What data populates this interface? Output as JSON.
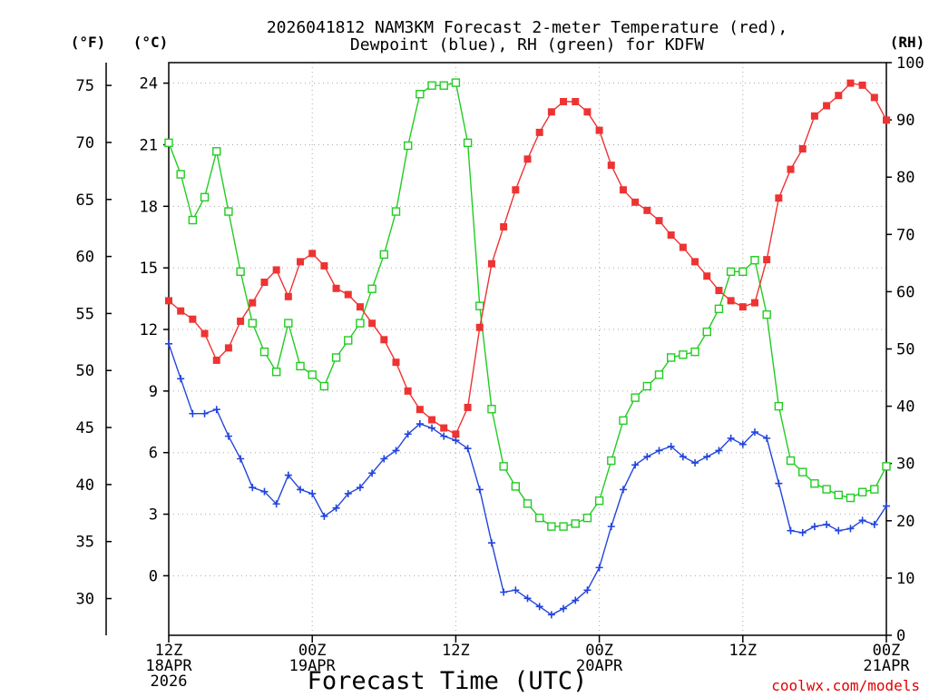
{
  "chart_data": {
    "type": "line",
    "title_lines": [
      "2026041812 NAM3KM Forecast 2-meter Temperature (red),",
      "Dewpoint (blue), RH (green) for KDFW"
    ],
    "xlabel": "Forecast Time (UTC)",
    "credit": "coolwx.com/models",
    "unit_labels": {
      "fahrenheit": "(°F)",
      "celsius": "(°C)",
      "rh": "(RH)"
    },
    "x_hours": [
      0,
      1,
      2,
      3,
      4,
      5,
      6,
      7,
      8,
      9,
      10,
      11,
      12,
      13,
      14,
      15,
      16,
      17,
      18,
      19,
      20,
      21,
      22,
      23,
      24,
      25,
      26,
      27,
      28,
      29,
      30,
      31,
      32,
      33,
      34,
      35,
      36,
      37,
      38,
      39,
      40,
      41,
      42,
      43,
      44,
      45,
      46,
      47,
      48,
      49,
      50,
      51,
      52,
      53,
      54,
      55,
      56,
      57,
      58,
      59,
      60
    ],
    "xlim": [
      0,
      60
    ],
    "x_ticks": [
      {
        "hour": 0,
        "lines": [
          "12Z",
          "18APR",
          "2026"
        ]
      },
      {
        "hour": 12,
        "lines": [
          "00Z",
          "19APR"
        ]
      },
      {
        "hour": 24,
        "lines": [
          "12Z"
        ]
      },
      {
        "hour": 36,
        "lines": [
          "00Z",
          "20APR"
        ]
      },
      {
        "hour": 48,
        "lines": [
          "12Z"
        ]
      },
      {
        "hour": 60,
        "lines": [
          "00Z",
          "21APR"
        ]
      }
    ],
    "ylim_celsius": [
      -2.9,
      25.0
    ],
    "y_ticks_celsius": [
      0,
      3,
      6,
      9,
      12,
      15,
      18,
      21,
      24
    ],
    "y_ticks_fahrenheit": [
      30,
      35,
      40,
      45,
      50,
      55,
      60,
      65,
      70,
      75
    ],
    "ylim_rh": [
      0,
      100
    ],
    "y_ticks_rh": [
      0,
      10,
      20,
      30,
      40,
      50,
      60,
      70,
      80,
      90,
      100
    ],
    "colors": {
      "temperature": "#ee3333",
      "dewpoint": "#2244dd",
      "rh": "#22cc22",
      "grid": "#aaaaaa",
      "axis": "#000000",
      "credit": "#e00000"
    },
    "series": [
      {
        "name": "Temperature",
        "unit": "C",
        "axis": "left",
        "marker": "filled-square",
        "values": [
          13.4,
          12.9,
          12.5,
          11.8,
          10.5,
          11.1,
          12.4,
          13.3,
          14.3,
          14.9,
          13.6,
          15.3,
          15.7,
          15.1,
          14.0,
          13.7,
          13.1,
          12.3,
          11.5,
          10.4,
          9.0,
          8.1,
          7.6,
          7.2,
          6.9,
          8.2,
          12.1,
          15.2,
          17.0,
          18.8,
          20.3,
          21.6,
          22.6,
          23.1,
          23.1,
          22.6,
          21.7,
          20.0,
          18.8,
          18.2,
          17.8,
          17.3,
          16.6,
          16.0,
          15.3,
          14.6,
          13.9,
          13.4,
          13.1,
          13.3,
          15.4,
          18.4,
          19.8,
          20.8,
          22.4,
          22.9,
          23.4,
          24.0,
          23.9,
          23.3,
          22.2
        ]
      },
      {
        "name": "Dewpoint",
        "unit": "C",
        "axis": "left",
        "marker": "plus",
        "values": [
          11.3,
          9.6,
          7.9,
          7.9,
          8.1,
          6.8,
          5.7,
          4.3,
          4.1,
          3.5,
          4.9,
          4.2,
          4.0,
          2.9,
          3.3,
          4.0,
          4.3,
          5.0,
          5.7,
          6.1,
          6.9,
          7.4,
          7.2,
          6.8,
          6.6,
          6.2,
          4.2,
          1.6,
          -0.8,
          -0.7,
          -1.1,
          -1.5,
          -1.9,
          -1.6,
          -1.2,
          -0.7,
          0.4,
          2.4,
          4.2,
          5.4,
          5.8,
          6.1,
          6.3,
          5.8,
          5.5,
          5.8,
          6.1,
          6.7,
          6.4,
          7.0,
          6.7,
          4.5,
          2.2,
          2.1,
          2.4,
          2.5,
          2.2,
          2.3,
          2.7,
          2.5,
          3.4
        ]
      },
      {
        "name": "RH",
        "unit": "%",
        "axis": "right",
        "marker": "open-square",
        "values": [
          86,
          80.5,
          72.5,
          76.5,
          84.5,
          74,
          63.5,
          54.5,
          49.5,
          46,
          54.5,
          47,
          45.5,
          43.5,
          48.5,
          51.5,
          54.5,
          60.5,
          66.5,
          74,
          85.5,
          94.5,
          96,
          96,
          96.5,
          86,
          57.5,
          39.5,
          29.5,
          26,
          23,
          20.5,
          19,
          19,
          19.5,
          20.5,
          23.5,
          30.5,
          37.5,
          41.5,
          43.5,
          45.5,
          48.5,
          49,
          49.5,
          53,
          57,
          63.5,
          63.5,
          65.5,
          56,
          40,
          30.5,
          28.5,
          26.5,
          25.5,
          24.5,
          24,
          25,
          25.5,
          29.5
        ]
      }
    ]
  }
}
